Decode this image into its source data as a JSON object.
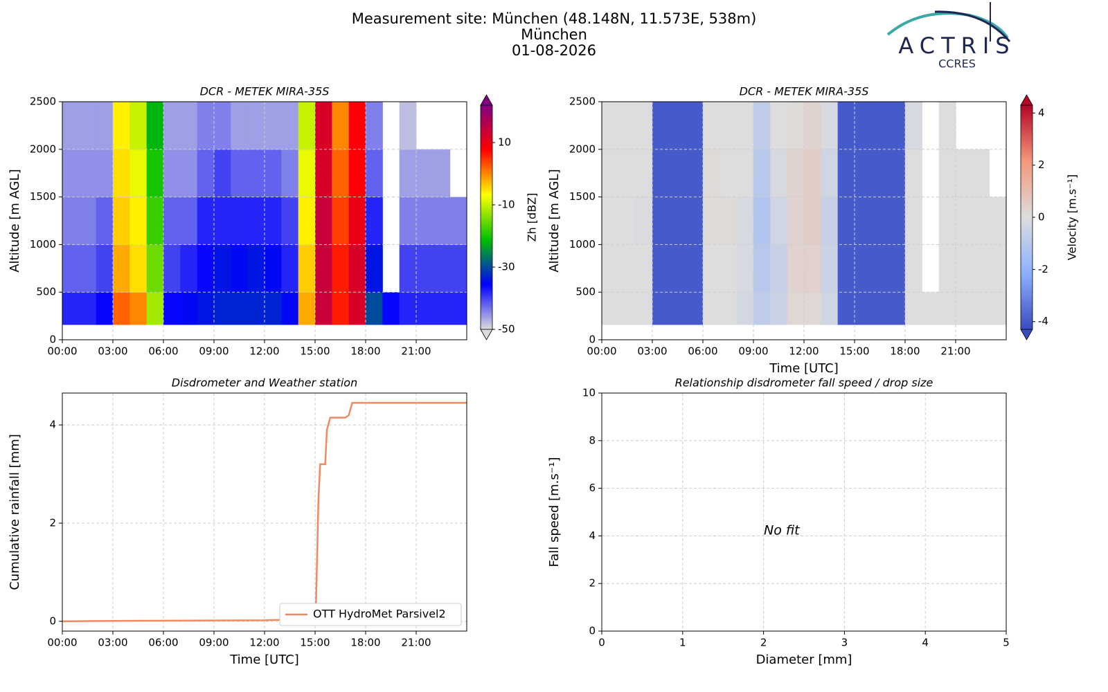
{
  "header": {
    "title": "Measurement site: München (48.148N, 11.573E, 538m)",
    "subtitle": "München",
    "date": "01-08-2026",
    "logo": "ACTRIS",
    "logo_sub": "CCRES"
  },
  "chart_data": [
    {
      "type": "heatmap",
      "title": "DCR - METEK MIRA-35S",
      "ylabel": "Altitude [m AGL]",
      "zlabel": "Zh [dBZ]",
      "xlim": [
        0,
        24
      ],
      "xticks": [
        {
          "value": 0,
          "label": "00:00"
        },
        {
          "value": 3,
          "label": "03:00"
        },
        {
          "value": 6,
          "label": "06:00"
        },
        {
          "value": 9,
          "label": "09:00"
        },
        {
          "value": 12,
          "label": "12:00"
        },
        {
          "value": 15,
          "label": "15:00"
        },
        {
          "value": 18,
          "label": "18:00"
        },
        {
          "value": 21,
          "label": "21:00"
        }
      ],
      "ylim": [
        0,
        2500
      ],
      "yticks": [
        0,
        500,
        1000,
        1500,
        2000,
        2500
      ],
      "grid": true,
      "zlim": [
        -50,
        22
      ],
      "zticks": [
        -50,
        -30,
        -10,
        10
      ],
      "colormap": [
        "#dcdcdc",
        "#0000ff",
        "#00c000",
        "#ffff00",
        "#ff0000",
        "#800080"
      ],
      "x_bins": [
        0,
        1,
        2,
        3,
        4,
        5,
        6,
        7,
        8,
        9,
        10,
        11,
        12,
        13,
        14,
        15,
        16,
        17,
        18,
        19,
        20,
        21,
        22,
        23,
        24
      ],
      "y_edges": [
        160,
        500,
        1000,
        1500,
        2000,
        2500
      ],
      "z": [
        [
          -38,
          -38,
          -36,
          2,
          0,
          -12,
          -36,
          -35,
          -34,
          -33,
          -33,
          -33,
          -33,
          -35,
          -2,
          14,
          6,
          12,
          -30,
          -36,
          -38,
          -38,
          -38,
          -38
        ],
        [
          -42,
          -42,
          -40,
          -2,
          -5,
          -15,
          -40,
          -38,
          -36,
          -34,
          -35,
          -34,
          -35,
          -38,
          -4,
          14,
          6,
          12,
          -34,
          null,
          -40,
          -40,
          -40,
          -40
        ],
        [
          -44,
          -44,
          -42,
          -4,
          -6,
          -18,
          -42,
          -42,
          -38,
          -38,
          -38,
          -38,
          -38,
          -40,
          -6,
          14,
          4,
          10,
          -38,
          null,
          -44,
          -44,
          -44,
          -44
        ],
        [
          -45,
          -45,
          -45,
          -5,
          -8,
          -20,
          -45,
          -45,
          -42,
          -40,
          -42,
          -42,
          -42,
          -44,
          -8,
          12,
          2,
          8,
          -42,
          null,
          -46,
          -46,
          -46,
          null
        ],
        [
          -46,
          -46,
          -46,
          -6,
          -10,
          -22,
          -46,
          -46,
          -44,
          -44,
          -46,
          -46,
          -46,
          -46,
          -10,
          12,
          0,
          8,
          -44,
          null,
          -48,
          null,
          null,
          null
        ]
      ]
    },
    {
      "type": "heatmap",
      "title": "DCR - METEK MIRA-35S",
      "xlabel": "Time [UTC]",
      "ylabel": "Altitude [m AGL]",
      "zlabel": "Velocity [m.s⁻¹]",
      "xlim": [
        0,
        24
      ],
      "xticks": [
        {
          "value": 0,
          "label": "00:00"
        },
        {
          "value": 3,
          "label": "03:00"
        },
        {
          "value": 6,
          "label": "06:00"
        },
        {
          "value": 9,
          "label": "09:00"
        },
        {
          "value": 12,
          "label": "12:00"
        },
        {
          "value": 15,
          "label": "15:00"
        },
        {
          "value": 18,
          "label": "18:00"
        },
        {
          "value": 21,
          "label": "21:00"
        }
      ],
      "ylim": [
        0,
        2500
      ],
      "yticks": [
        0,
        500,
        1000,
        1500,
        2000,
        2500
      ],
      "grid": true,
      "zlim": [
        -4.3,
        4.3
      ],
      "zticks": [
        -4,
        -2,
        0,
        2,
        4
      ],
      "colormap": [
        "#3b4cc0",
        "#8db0fe",
        "#dddddd",
        "#f4987a",
        "#b40426"
      ],
      "x_bins": [
        0,
        1,
        2,
        3,
        4,
        5,
        6,
        7,
        8,
        9,
        10,
        11,
        12,
        13,
        14,
        15,
        16,
        17,
        18,
        19,
        20,
        21,
        22,
        23,
        24
      ],
      "y_edges": [
        160,
        500,
        1000,
        1500,
        2000,
        2500
      ],
      "z": [
        [
          0,
          0,
          0,
          -4,
          -4,
          -4,
          0,
          0,
          -0.3,
          -0.8,
          -0.5,
          0.2,
          0.2,
          -0.4,
          -4,
          -4,
          -4,
          -4,
          0,
          0,
          0,
          0,
          0,
          0
        ],
        [
          0,
          0,
          0,
          -4,
          -4,
          -4,
          0,
          0,
          -0.2,
          -1,
          -0.6,
          0.3,
          0.4,
          -0.5,
          -4,
          -4,
          -4,
          -4,
          0,
          null,
          0,
          0,
          0,
          0
        ],
        [
          0,
          0,
          -0.1,
          -4,
          -4,
          -4,
          0.1,
          0.1,
          -0.2,
          -1.2,
          -0.4,
          0.3,
          0.5,
          -0.6,
          -4,
          -4,
          -4,
          -4,
          0,
          null,
          0,
          0,
          0,
          0
        ],
        [
          0,
          0,
          0,
          -4,
          -4,
          -4,
          0.1,
          0,
          0,
          -1,
          -0.2,
          0.3,
          0.5,
          -0.4,
          -4,
          -4,
          -4,
          -4,
          0,
          null,
          0,
          0,
          0,
          null
        ],
        [
          0,
          0,
          0,
          -4,
          -4,
          -4,
          0,
          0,
          0,
          -0.8,
          0,
          0.1,
          0.3,
          -0.2,
          -4,
          -4,
          -4,
          -4,
          -0.2,
          null,
          0,
          null,
          null,
          null
        ]
      ]
    },
    {
      "type": "line",
      "title": "Disdrometer and Weather station",
      "xlabel": "Time [UTC]",
      "ylabel": "Cumulative rainfall [mm]",
      "xlim": [
        0,
        24
      ],
      "xticks": [
        {
          "value": 0,
          "label": "00:00"
        },
        {
          "value": 3,
          "label": "03:00"
        },
        {
          "value": 6,
          "label": "06:00"
        },
        {
          "value": 9,
          "label": "09:00"
        },
        {
          "value": 12,
          "label": "12:00"
        },
        {
          "value": 15,
          "label": "15:00"
        },
        {
          "value": 18,
          "label": "18:00"
        },
        {
          "value": 21,
          "label": "21:00"
        }
      ],
      "ylim": [
        -0.2,
        4.65
      ],
      "yticks": [
        0,
        2,
        4
      ],
      "grid": true,
      "legend": "lower right",
      "x": [
        0,
        4,
        12,
        14.9,
        15.05,
        15.2,
        15.3,
        15.6,
        15.7,
        15.9,
        16.8,
        17.0,
        17.2,
        24
      ],
      "series": [
        {
          "name": "OTT HydroMet Parsivel2",
          "color": "#ef8a62",
          "values": [
            0,
            0.01,
            0.02,
            0.05,
            0.3,
            2.5,
            3.2,
            3.2,
            3.9,
            4.15,
            4.15,
            4.2,
            4.45,
            4.45
          ]
        }
      ]
    },
    {
      "type": "scatter",
      "title": "Relationship disdrometer fall speed / drop size",
      "xlabel": "Diameter [mm]",
      "ylabel": "Fall speed [m.s⁻¹]",
      "annotation": "No fit",
      "xlim": [
        0,
        5
      ],
      "xticks": [
        0,
        1,
        2,
        3,
        4,
        5
      ],
      "ylim": [
        0,
        10
      ],
      "yticks": [
        0,
        2,
        4,
        6,
        8,
        10
      ],
      "grid": true
    }
  ]
}
